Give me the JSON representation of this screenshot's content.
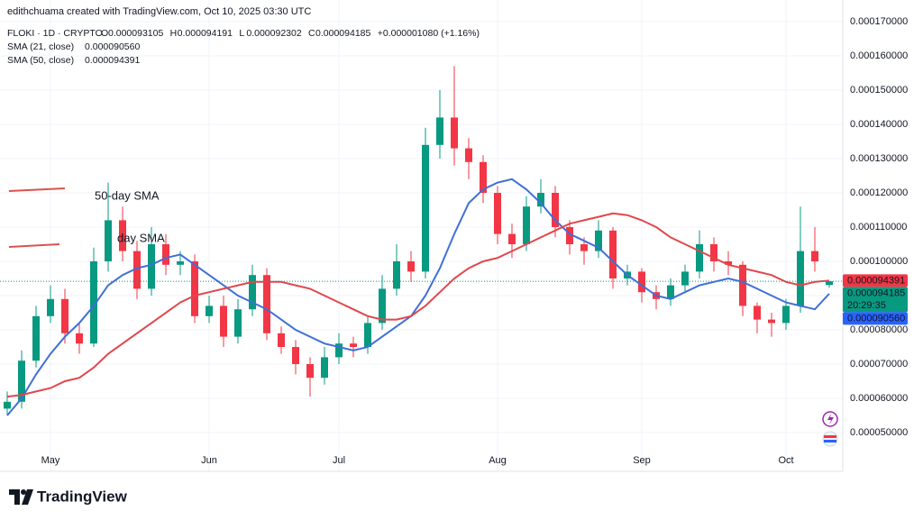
{
  "header": {
    "credit": "edithchuama created with TradingView.com, Oct 10, 2025 03:30 UTC"
  },
  "legend": {
    "symbol": "FLOKI · 1D · CRYPTO",
    "ohlc": [
      {
        "key": "O",
        "value": "0.000093105"
      },
      {
        "key": "H",
        "value": "0.000094191"
      },
      {
        "key": "L",
        "value": "0.000092302"
      },
      {
        "key": "C",
        "value": "0.000094185"
      }
    ],
    "change": "+0.000001080 (+1.16%)",
    "indicators": [
      {
        "name": "SMA (21, close)",
        "value": "0.000090560",
        "color": "#3f6fd8"
      },
      {
        "name": "SMA (50, close)",
        "value": "0.000094391",
        "color": "#e0474c"
      }
    ]
  },
  "chart_data": {
    "type": "candlestick",
    "categories": [
      null,
      null,
      null,
      "May",
      null,
      null,
      null,
      null,
      null,
      null,
      null,
      null,
      null,
      null,
      "Jun",
      null,
      null,
      null,
      null,
      null,
      null,
      null,
      null,
      "Jul",
      null,
      null,
      null,
      null,
      null,
      null,
      null,
      null,
      null,
      null,
      "Aug",
      null,
      null,
      null,
      null,
      null,
      null,
      null,
      null,
      null,
      "Sep",
      null,
      null,
      null,
      null,
      null,
      null,
      null,
      null,
      null,
      "Oct",
      null,
      null,
      null
    ],
    "open": [
      5.7e-05,
      5.9e-05,
      7.1e-05,
      8.4e-05,
      8.9e-05,
      7.9e-05,
      7.6e-05,
      0.0001,
      0.000112,
      0.000103,
      9.2e-05,
      0.000105,
      9.9e-05,
      0.0001,
      8.4e-05,
      8.7e-05,
      7.8e-05,
      8.6e-05,
      9.6e-05,
      7.9e-05,
      7.5e-05,
      7e-05,
      6.6e-05,
      7.2e-05,
      7.6e-05,
      7.5e-05,
      8.2e-05,
      9.2e-05,
      0.0001,
      9.7e-05,
      0.000134,
      0.000142,
      0.000133,
      0.000129,
      0.00012,
      0.000108,
      0.000105,
      0.000116,
      0.00012,
      0.00011,
      0.000105,
      0.000103,
      0.000109,
      9.5e-05,
      9.7e-05,
      9.1e-05,
      8.9e-05,
      9.3e-05,
      9.7e-05,
      0.000105,
      0.0001,
      9.9e-05,
      8.7e-05,
      8.3e-05,
      8.2e-05,
      8.7e-05,
      0.000103,
      9.3105e-05
    ],
    "high": [
      6.2e-05,
      7.4e-05,
      8.7e-05,
      9.3e-05,
      9.2e-05,
      8.2e-05,
      0.000104,
      0.000123,
      0.000116,
      0.000106,
      0.00011,
      0.000108,
      0.000103,
      0.000102,
      9e-05,
      9e-05,
      8.9e-05,
      9.9e-05,
      9.8e-05,
      8.1e-05,
      7.7e-05,
      7.2e-05,
      7.5e-05,
      7.9e-05,
      7.8e-05,
      8.4e-05,
      9.6e-05,
      0.000105,
      0.000103,
      0.000139,
      0.00015,
      0.000157,
      0.000136,
      0.000131,
      0.000122,
      0.000111,
      0.000119,
      0.000124,
      0.000122,
      0.000112,
      0.000107,
      0.000112,
      0.00011,
      9.9e-05,
      9.8e-05,
      9.3e-05,
      9.5e-05,
      9.9e-05,
      0.000109,
      0.000107,
      0.000103,
      0.0001,
      8.8e-05,
      8.5e-05,
      8.9e-05,
      0.000116,
      0.00011,
      9.4191e-05
    ],
    "low": [
      5.5e-05,
      5.7e-05,
      6.9e-05,
      8.2e-05,
      7.6e-05,
      7.3e-05,
      7.5e-05,
      9.7e-05,
      0.0001,
      8.9e-05,
      9e-05,
      9.6e-05,
      9.6e-05,
      8.2e-05,
      8.2e-05,
      7.5e-05,
      7.6e-05,
      8.4e-05,
      7.7e-05,
      7.3e-05,
      6.7e-05,
      6.05e-05,
      6.4e-05,
      7e-05,
      7.2e-05,
      7.3e-05,
      8e-05,
      9e-05,
      9.4e-05,
      9.5e-05,
      0.00013,
      0.000128,
      0.000124,
      0.000117,
      0.000105,
      0.000101,
      0.000103,
      0.000114,
      0.000107,
      0.000102,
      9.9e-05,
      0.000101,
      9.2e-05,
      9.3e-05,
      8.8e-05,
      8.6e-05,
      8.7e-05,
      9.1e-05,
      9.5e-05,
      9.7e-05,
      9.6e-05,
      8.4e-05,
      7.9e-05,
      7.8e-05,
      8e-05,
      8.5e-05,
      9.7e-05,
      9.2302e-05
    ],
    "close": [
      5.9e-05,
      7.1e-05,
      8.4e-05,
      8.9e-05,
      7.9e-05,
      7.6e-05,
      0.0001,
      0.000112,
      0.000103,
      9.2e-05,
      0.000105,
      9.9e-05,
      0.0001,
      8.4e-05,
      8.7e-05,
      7.8e-05,
      8.6e-05,
      9.6e-05,
      7.9e-05,
      7.5e-05,
      7e-05,
      6.6e-05,
      7.2e-05,
      7.6e-05,
      7.5e-05,
      8.2e-05,
      9.2e-05,
      0.0001,
      9.7e-05,
      0.000134,
      0.000142,
      0.000133,
      0.000129,
      0.00012,
      0.000108,
      0.000105,
      0.000116,
      0.00012,
      0.00011,
      0.000105,
      0.000103,
      0.000109,
      9.5e-05,
      9.7e-05,
      9.1e-05,
      8.9e-05,
      9.3e-05,
      9.7e-05,
      0.000105,
      0.0001,
      9.9e-05,
      8.7e-05,
      8.3e-05,
      8.2e-05,
      8.7e-05,
      0.000103,
      0.0001,
      9.4185e-05
    ],
    "up_color": "#089981",
    "down_color": "#f23645",
    "series": [
      {
        "name": "SMA (21, close)",
        "color": "#3f6fd8",
        "values": [
          5.5e-05,
          6e-05,
          6.7e-05,
          7.3e-05,
          7.8e-05,
          8.2e-05,
          8.7e-05,
          9.3e-05,
          9.6e-05,
          9.8e-05,
          9.9e-05,
          0.000101,
          0.000102,
          9.9e-05,
          9.6e-05,
          9.3e-05,
          9e-05,
          8.8e-05,
          8.6e-05,
          8.3e-05,
          8e-05,
          7.8e-05,
          7.6e-05,
          7.5e-05,
          7.4e-05,
          7.5e-05,
          7.8e-05,
          8.1e-05,
          8.4e-05,
          9e-05,
          9.8e-05,
          0.000108,
          0.000117,
          0.000121,
          0.000123,
          0.000124,
          0.000121,
          0.000117,
          0.000112,
          0.000108,
          0.000106,
          0.000104,
          0.0001,
          9.6e-05,
          9.3e-05,
          9e-05,
          8.9e-05,
          9.1e-05,
          9.3e-05,
          9.4e-05,
          9.5e-05,
          9.4e-05,
          9.2e-05,
          9e-05,
          8.8e-05,
          8.7e-05,
          8.6e-05,
          9.056e-05
        ]
      },
      {
        "name": "SMA (50, close)",
        "color": "#e0474c",
        "values": [
          6.05e-05,
          6.1e-05,
          6.2e-05,
          6.3e-05,
          6.5e-05,
          6.6e-05,
          6.9e-05,
          7.3e-05,
          7.6e-05,
          7.9e-05,
          8.2e-05,
          8.5e-05,
          8.8e-05,
          9e-05,
          9.1e-05,
          9.2e-05,
          9.3e-05,
          9.4e-05,
          9.4e-05,
          9.4e-05,
          9.3e-05,
          9.2e-05,
          9e-05,
          8.8e-05,
          8.6e-05,
          8.4e-05,
          8.3e-05,
          8.3e-05,
          8.4e-05,
          8.7e-05,
          9.1e-05,
          9.5e-05,
          9.8e-05,
          0.0001,
          0.000101,
          0.000103,
          0.000105,
          0.000107,
          0.000109,
          0.000111,
          0.000112,
          0.000113,
          0.000114,
          0.0001135,
          0.000112,
          0.00011,
          0.000107,
          0.000105,
          0.000103,
          0.000101,
          9.9e-05,
          9.8e-05,
          9.7e-05,
          9.6e-05,
          9.4e-05,
          9.3e-05,
          9.4e-05,
          9.4391e-05
        ]
      }
    ],
    "ylim": [
      4.474e-05,
      0.00017368
    ],
    "yticks": [
      {
        "value": 5e-05,
        "label": "0.000050000"
      },
      {
        "value": 6e-05,
        "label": "0.000060000"
      },
      {
        "value": 7e-05,
        "label": "0.000070000"
      },
      {
        "value": 8e-05,
        "label": "0.000080000"
      },
      {
        "value": 9e-05,
        "label": "0.000090000"
      },
      {
        "value": 0.0001,
        "label": "0.000100000"
      },
      {
        "value": 0.00011,
        "label": "0.000110000"
      },
      {
        "value": 0.00012,
        "label": "0.000120000"
      },
      {
        "value": 0.00013,
        "label": "0.000130000"
      },
      {
        "value": 0.00014,
        "label": "0.000140000"
      },
      {
        "value": 0.00015,
        "label": "0.000150000"
      },
      {
        "value": 0.00016,
        "label": "0.000160000"
      },
      {
        "value": 0.00017,
        "label": "0.000170000"
      }
    ],
    "badges": [
      {
        "value": 9.4391e-05,
        "label": "0.000094391",
        "color": "#f23645"
      },
      {
        "value": 9.4185e-05,
        "label": "0.000094185",
        "color": "#089981",
        "countdown": "20:29:35"
      },
      {
        "value": 9.056e-05,
        "label": "0.000090560",
        "color": "#2962ff"
      }
    ],
    "annotations": [
      {
        "text": "50-day SMA",
        "color": "#d9534f"
      },
      {
        "text": "day SMA",
        "color": "#3f6fd8"
      }
    ]
  },
  "footer": {
    "brand": "TradingView"
  }
}
